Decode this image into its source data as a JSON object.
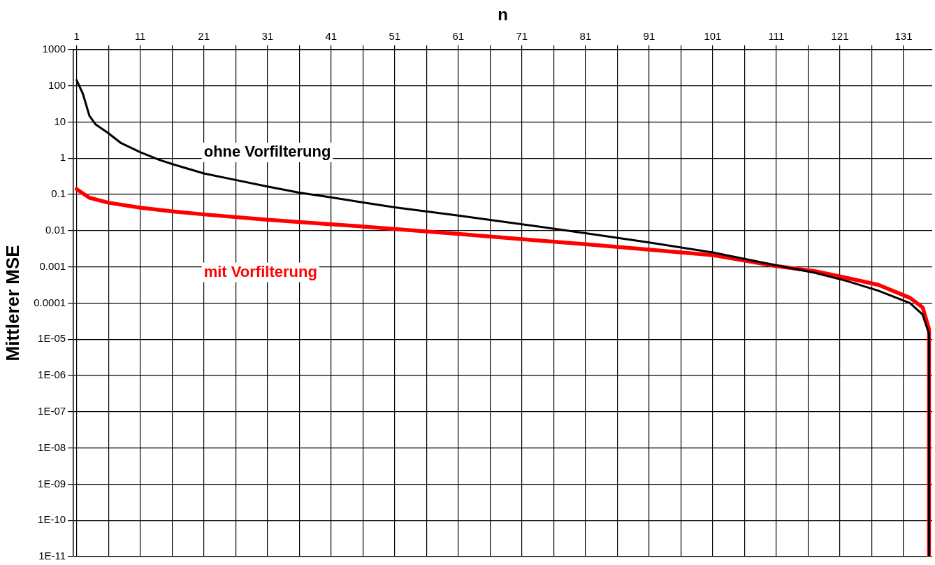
{
  "chart_data": {
    "type": "line",
    "xlabel": "n",
    "ylabel": "Mittlerer MSE",
    "xlim": [
      0.5,
      135.5
    ],
    "xticks": [
      1,
      {
        "value": 6,
        "label": null
      },
      11,
      {
        "value": 16,
        "label": null
      },
      21,
      {
        "value": 26,
        "label": null
      },
      31,
      {
        "value": 36,
        "label": null
      },
      41,
      {
        "value": 46,
        "label": null
      },
      51,
      {
        "value": 56,
        "label": null
      },
      61,
      {
        "value": 66,
        "label": null
      },
      71,
      {
        "value": 76,
        "label": null
      },
      81,
      {
        "value": 86,
        "label": null
      },
      91,
      {
        "value": 96,
        "label": null
      },
      101,
      {
        "value": 106,
        "label": null
      },
      111,
      {
        "value": 116,
        "label": null
      },
      121,
      {
        "value": 126,
        "label": null
      },
      131
    ],
    "ylim": [
      1e-11,
      1000
    ],
    "yticks": [
      1000,
      100,
      10,
      1,
      0.1,
      0.01,
      0.001,
      0.0001,
      {
        "value": 1e-05,
        "label": "1E-05"
      },
      {
        "value": 1e-06,
        "label": "1E-06"
      },
      {
        "value": 1e-07,
        "label": "1E-07"
      },
      {
        "value": 1e-08,
        "label": "1E-08"
      },
      {
        "value": 1e-09,
        "label": "1E-09"
      },
      {
        "value": 1e-10,
        "label": "1E-10"
      },
      {
        "value": 1e-11,
        "label": "1E-11"
      }
    ],
    "log": "y",
    "grid": true,
    "legend": false,
    "marker": "none",
    "line_style": "solid",
    "series": [
      {
        "name": "ohne Vorfilterung",
        "color": "#000000",
        "x": [
          1,
          2,
          3,
          4,
          6,
          8,
          11,
          14,
          16,
          21,
          26,
          31,
          36,
          41,
          46,
          51,
          61,
          71,
          81,
          91,
          101,
          111,
          117,
          122,
          127,
          132,
          134,
          135,
          135
        ],
        "values": [
          143,
          59,
          15,
          8.5,
          4.9,
          2.6,
          1.47,
          0.9,
          0.69,
          0.38,
          0.25,
          0.165,
          0.112,
          0.083,
          0.06,
          0.044,
          0.026,
          0.015,
          0.0085,
          0.0047,
          0.0025,
          0.0011,
          0.00069,
          0.00041,
          0.00022,
          0.0001,
          4.8e-05,
          1.4e-05,
          1e-11
        ]
      },
      {
        "name": "mit Vorfilterung",
        "color": "#ff0000",
        "x": [
          1,
          3,
          6,
          11,
          16,
          21,
          31,
          41,
          46,
          51,
          61,
          71,
          81,
          91,
          101,
          111,
          117,
          122,
          127,
          132,
          134,
          135,
          135
        ],
        "values": [
          0.14,
          0.081,
          0.059,
          0.043,
          0.034,
          0.028,
          0.02,
          0.015,
          0.013,
          0.0111,
          0.0081,
          0.0058,
          0.0042,
          0.003,
          0.0021,
          0.00105,
          0.00076,
          0.0005,
          0.00032,
          0.00014,
          7.6e-05,
          1.9e-05,
          1e-11
        ]
      }
    ]
  }
}
